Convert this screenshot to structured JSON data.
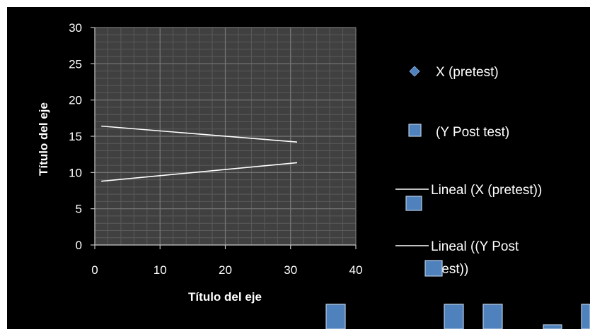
{
  "chart_data": {
    "type": "scatter",
    "xlabel": "Título del eje",
    "ylabel": "Título del eje",
    "xlim": [
      0,
      40
    ],
    "ylim": [
      0,
      30
    ],
    "x_ticks": [
      "0",
      "10",
      "20",
      "30",
      "40"
    ],
    "y_ticks": [
      "0",
      "5",
      "10",
      "15",
      "20",
      "25",
      "30"
    ],
    "grid": true,
    "legend_position": "right",
    "series": [
      {
        "name": "X (pretest)",
        "marker": "diamond",
        "color": "#4f81bd",
        "points": []
      },
      {
        "name": "(Y Post test)",
        "marker": "square",
        "color": "#4f81bd",
        "points": []
      }
    ],
    "trendlines": [
      {
        "name": "Lineal (X (pretest))",
        "from": [
          1,
          8.8
        ],
        "to": [
          31,
          11.35
        ],
        "color": "#ffffff"
      },
      {
        "name": "Lineal ((Y Post test))",
        "from": [
          1,
          16.4
        ],
        "to": [
          31,
          14.2
        ],
        "color": "#ffffff"
      }
    ],
    "legend": [
      {
        "label": "X (pretest)",
        "symbol": "diamond"
      },
      {
        "label": "(Y Post test)",
        "symbol": "square"
      },
      {
        "label": "Lineal (X (pretest))",
        "symbol": "line"
      },
      {
        "label": "Lineal ((Y Post",
        "label_cont": "test))",
        "symbol": "line"
      }
    ],
    "colors": {
      "background": "#000000",
      "plot_area": "#404040",
      "grid_minor": "#5a5a5a",
      "grid_major": "#767676",
      "text": "#ffffff",
      "marker_fill": "#4f81bd"
    }
  }
}
